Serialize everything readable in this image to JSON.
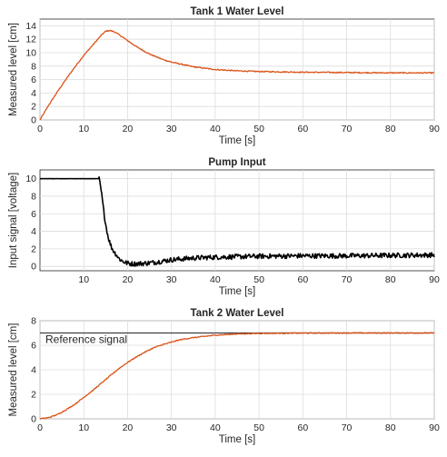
{
  "chart_data": [
    {
      "type": "line",
      "title": "Tank 1 Water Level",
      "xlabel": "Time [s]",
      "ylabel": "Measured level [cm]",
      "xlim": [
        0,
        90
      ],
      "ylim": [
        0,
        15
      ],
      "xticks": [
        0,
        10,
        20,
        30,
        40,
        50,
        60,
        70,
        80,
        90
      ],
      "yticks": [
        0,
        2,
        4,
        6,
        8,
        10,
        12,
        14
      ],
      "grid": true,
      "series": [
        {
          "color": "#d95319",
          "x": [
            0,
            2,
            4,
            6,
            8,
            10,
            12,
            14,
            15,
            16,
            17,
            18,
            20,
            22,
            25,
            28,
            30,
            35,
            40,
            45,
            50,
            60,
            70,
            80,
            90
          ],
          "values": [
            0,
            2.2,
            4.2,
            6.1,
            7.9,
            9.6,
            11.1,
            12.6,
            13.2,
            13.3,
            13.1,
            12.7,
            11.8,
            10.9,
            9.8,
            9.0,
            8.6,
            7.9,
            7.5,
            7.3,
            7.2,
            7.1,
            7.05,
            7.0,
            7.0
          ]
        }
      ]
    },
    {
      "type": "line",
      "title": "Pump Input",
      "xlabel": "Time [s]",
      "ylabel": "Input signal [voltage]",
      "xlim": [
        0,
        90
      ],
      "ylim": [
        -0.5,
        11
      ],
      "xticks": [
        10,
        20,
        30,
        40,
        50,
        60,
        70,
        80,
        90
      ],
      "yticks": [
        0,
        2,
        4,
        6,
        8,
        10
      ],
      "grid": true,
      "series": [
        {
          "color": "#000000",
          "x": [
            0,
            13.5,
            14,
            14.5,
            15,
            15.5,
            16,
            16.5,
            17,
            17.5,
            18,
            19,
            20,
            21,
            22,
            24,
            26,
            28,
            30,
            35,
            40,
            50,
            60,
            70,
            80,
            90
          ],
          "values": [
            10,
            10,
            8.5,
            6.5,
            4.8,
            3.5,
            2.6,
            2.0,
            1.6,
            1.3,
            0.9,
            0.55,
            0.35,
            0.3,
            0.3,
            0.35,
            0.45,
            0.6,
            0.75,
            0.95,
            1.05,
            1.15,
            1.2,
            1.2,
            1.25,
            1.3
          ]
        }
      ]
    },
    {
      "type": "line",
      "title": "Tank 2 Water Level",
      "xlabel": "Time [s]",
      "ylabel": "Measured level [cm]",
      "xlim": [
        0,
        90
      ],
      "ylim": [
        0,
        8
      ],
      "xticks": [
        0,
        10,
        20,
        30,
        40,
        50,
        60,
        70,
        80,
        90
      ],
      "yticks": [
        0,
        2,
        4,
        6,
        8
      ],
      "grid": true,
      "annotation": "Reference signal",
      "series": [
        {
          "color": "#404040",
          "x": [
            0,
            90
          ],
          "values": [
            7,
            7
          ]
        },
        {
          "color": "#d95319",
          "x": [
            0,
            2,
            4,
            6,
            8,
            10,
            12,
            14,
            16,
            18,
            20,
            22,
            24,
            26,
            28,
            30,
            32,
            35,
            40,
            45,
            50,
            55,
            60,
            70,
            80,
            90
          ],
          "values": [
            0,
            0.1,
            0.35,
            0.75,
            1.2,
            1.75,
            2.3,
            2.9,
            3.5,
            4.1,
            4.6,
            5.05,
            5.45,
            5.8,
            6.05,
            6.25,
            6.45,
            6.62,
            6.82,
            6.92,
            6.97,
            6.98,
            6.99,
            7.0,
            7.0,
            7.0
          ]
        }
      ]
    }
  ]
}
